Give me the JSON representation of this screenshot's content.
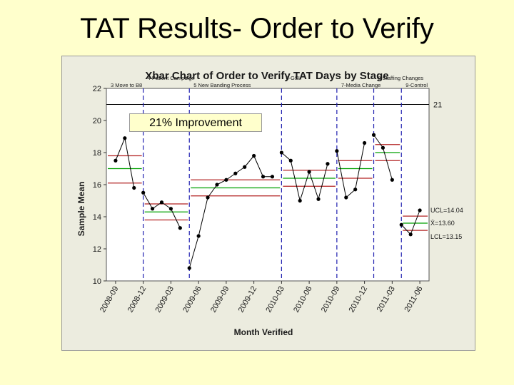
{
  "slide": {
    "title": "TAT Results- Order to Verify",
    "callout": "21% Improvement"
  },
  "chart_data": {
    "type": "line",
    "title": "Xbar Chart of Order to Verify TAT Days by Stage",
    "xlabel": "Month Verified",
    "ylabel": "Sample Mean",
    "ylim": [
      10,
      22
    ],
    "y_ticks": [
      10,
      12,
      14,
      16,
      18,
      20,
      22
    ],
    "x_tick_labels": [
      "2008-09",
      "2008-12",
      "2009-03",
      "2009-06",
      "2009-09",
      "2009-12",
      "2010-03",
      "2010-06",
      "2010-09",
      "2010-12",
      "2011-03",
      "2011-06"
    ],
    "target_value": 21,
    "target_label": "21",
    "stages": [
      {
        "label": "3 Move to B8",
        "start": "2008-08",
        "end": "2008-12"
      },
      {
        "label": "4 Patient Campaign",
        "start": "2008-12",
        "end": "2009-05"
      },
      {
        "label": "5 New Banding Process",
        "start": "2009-05",
        "end": "2010-03"
      },
      {
        "label": "6-GSL",
        "start": "2010-03",
        "end": "2010-09"
      },
      {
        "label": "7-Media Change",
        "start": "2010-09",
        "end": "2011-01"
      },
      {
        "label": "8 Staffing Changes",
        "start": "2011-01",
        "end": "2011-04"
      },
      {
        "label": "9-Control",
        "start": "2011-04",
        "end": "2011-07"
      }
    ],
    "series": [
      {
        "x": [
          "2008-09",
          "2008-10",
          "2008-11",
          "2008-12",
          "2009-01",
          "2009-02",
          "2009-03",
          "2009-04",
          "2009-05",
          "2009-06",
          "2009-07",
          "2009-08",
          "2009-09",
          "2009-10",
          "2009-11",
          "2009-12",
          "2010-01",
          "2010-02",
          "2010-03",
          "2010-04",
          "2010-05",
          "2010-06",
          "2010-07",
          "2010-08",
          "2010-09",
          "2010-10",
          "2010-11",
          "2010-12",
          "2011-01",
          "2011-02",
          "2011-03",
          "2011-04",
          "2011-05",
          "2011-06"
        ],
        "values": [
          17.5,
          18.9,
          15.8,
          15.5,
          14.5,
          14.9,
          14.5,
          13.3,
          10.8,
          12.8,
          15.2,
          16.0,
          16.3,
          16.7,
          17.1,
          17.8,
          16.5,
          16.5,
          18.0,
          17.5,
          15.0,
          16.8,
          15.1,
          17.3,
          18.1,
          15.2,
          15.7,
          18.6,
          19.1,
          18.3,
          16.3,
          13.5,
          12.9,
          14.4
        ]
      }
    ],
    "stage_limits": [
      {
        "ucl": 17.8,
        "center": 17.0,
        "lcl": 16.1
      },
      {
        "ucl": 14.8,
        "center": 14.3,
        "lcl": 13.8
      },
      {
        "ucl": 16.3,
        "center": 15.8,
        "lcl": 15.3
      },
      {
        "ucl": 16.9,
        "center": 16.4,
        "lcl": 15.9
      },
      {
        "ucl": 17.5,
        "center": 17.0,
        "lcl": 16.4
      },
      {
        "ucl": 18.5,
        "center": 18.0,
        "lcl": 17.5
      },
      {
        "ucl": 14.04,
        "center": 13.6,
        "lcl": 13.15
      }
    ],
    "limit_labels": [
      "UCL=14.04",
      "X̄=13.60",
      "LCL=13.15"
    ],
    "colors": {
      "data": "#000000",
      "limits": "#b22222",
      "center": "#00a000",
      "stage_line": "#1f1fb0",
      "target": "#000000",
      "frame_bg": "#e9e9d9"
    }
  }
}
